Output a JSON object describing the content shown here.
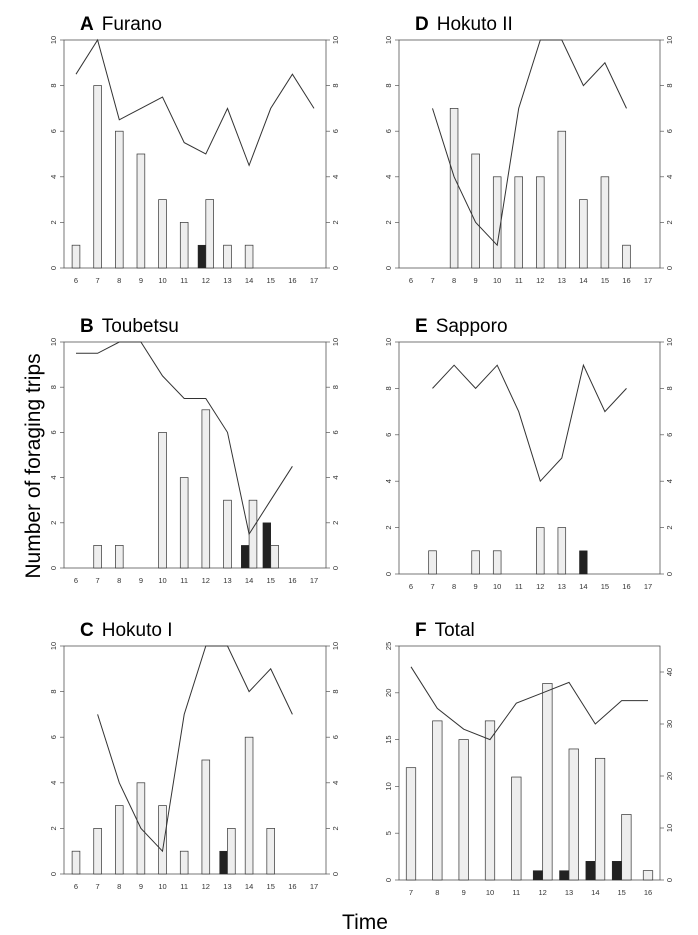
{
  "figure": {
    "ylabel": "Number of foraging trips",
    "xlabel": "Time"
  },
  "chart_data": [
    {
      "type": "bar",
      "letter": "A",
      "title": "Furano",
      "x": [
        6,
        7,
        8,
        9,
        10,
        11,
        12,
        13,
        14,
        15,
        16,
        17
      ],
      "ylim": [
        0,
        10
      ],
      "y2lim": [
        0,
        10
      ],
      "yticks": [
        0,
        2,
        4,
        6,
        8,
        10
      ],
      "y2ticks": [
        0,
        2,
        4,
        6,
        8,
        10
      ],
      "series": [
        {
          "kind": "bar",
          "color": "#eeeeee",
          "values": [
            1,
            8,
            6,
            5,
            3,
            2,
            3,
            1,
            1,
            null,
            null,
            null
          ]
        },
        {
          "kind": "bar",
          "color": "#222222",
          "values": [
            null,
            null,
            null,
            null,
            null,
            null,
            1,
            null,
            null,
            null,
            null,
            null
          ]
        },
        {
          "kind": "line",
          "axis": "right",
          "color": "#333333",
          "values": [
            8.5,
            10,
            6.5,
            7,
            7.5,
            5.5,
            5,
            7,
            4.5,
            7,
            8.5,
            7
          ]
        }
      ]
    },
    {
      "type": "bar",
      "letter": "B",
      "title": "Toubetsu",
      "x": [
        6,
        7,
        8,
        9,
        10,
        11,
        12,
        13,
        14,
        15,
        16,
        17
      ],
      "ylim": [
        0,
        10
      ],
      "y2lim": [
        0,
        10
      ],
      "yticks": [
        0,
        2,
        4,
        6,
        8,
        10
      ],
      "y2ticks": [
        0,
        2,
        4,
        6,
        8,
        10
      ],
      "series": [
        {
          "kind": "bar",
          "color": "#eeeeee",
          "values": [
            null,
            1,
            1,
            null,
            6,
            4,
            7,
            3,
            3,
            1,
            null,
            null
          ]
        },
        {
          "kind": "bar",
          "color": "#222222",
          "values": [
            null,
            null,
            null,
            null,
            null,
            null,
            null,
            null,
            1,
            2,
            null,
            null
          ]
        },
        {
          "kind": "line",
          "axis": "right",
          "color": "#333333",
          "values": [
            9.5,
            9.5,
            10,
            10,
            8.5,
            7.5,
            7.5,
            6,
            1.5,
            3,
            4.5,
            null
          ]
        }
      ]
    },
    {
      "type": "bar",
      "letter": "C",
      "title": "Hokuto I",
      "x": [
        6,
        7,
        8,
        9,
        10,
        11,
        12,
        13,
        14,
        15,
        16,
        17
      ],
      "ylim": [
        0,
        10
      ],
      "y2lim": [
        0,
        10
      ],
      "yticks": [
        0,
        2,
        4,
        6,
        8,
        10
      ],
      "y2ticks": [
        0,
        2,
        4,
        6,
        8,
        10
      ],
      "series": [
        {
          "kind": "bar",
          "color": "#eeeeee",
          "values": [
            1,
            2,
            3,
            4,
            3,
            1,
            5,
            2,
            6,
            2,
            null,
            null
          ]
        },
        {
          "kind": "bar",
          "color": "#222222",
          "values": [
            null,
            null,
            null,
            null,
            null,
            null,
            null,
            1,
            null,
            null,
            null,
            null
          ]
        },
        {
          "kind": "line",
          "axis": "right",
          "color": "#333333",
          "values": [
            null,
            7,
            4,
            2,
            1,
            7,
            10,
            10,
            8,
            9,
            7,
            null
          ]
        }
      ]
    },
    {
      "type": "bar",
      "letter": "D",
      "title": "Hokuto II",
      "x": [
        6,
        7,
        8,
        9,
        10,
        11,
        12,
        13,
        14,
        15,
        16,
        17
      ],
      "ylim": [
        0,
        10
      ],
      "y2lim": [
        0,
        10
      ],
      "yticks": [
        0,
        2,
        4,
        6,
        8,
        10
      ],
      "y2ticks": [
        0,
        2,
        4,
        6,
        8,
        10
      ],
      "series": [
        {
          "kind": "bar",
          "color": "#eeeeee",
          "values": [
            null,
            null,
            7,
            5,
            4,
            4,
            4,
            6,
            3,
            4,
            1,
            null
          ]
        },
        {
          "kind": "bar",
          "color": "#222222",
          "values": [
            null,
            null,
            null,
            null,
            null,
            null,
            null,
            null,
            null,
            null,
            null,
            null
          ]
        },
        {
          "kind": "line",
          "axis": "right",
          "color": "#333333",
          "values": [
            null,
            7,
            4,
            2,
            1,
            7,
            10,
            10,
            8,
            9,
            7,
            null
          ]
        }
      ]
    },
    {
      "type": "bar",
      "letter": "E",
      "title": "Sapporo",
      "x": [
        6,
        7,
        8,
        9,
        10,
        11,
        12,
        13,
        14,
        15,
        16,
        17
      ],
      "ylim": [
        0,
        10
      ],
      "y2lim": [
        0,
        10
      ],
      "yticks": [
        0,
        2,
        4,
        6,
        8,
        10
      ],
      "y2ticks": [
        0,
        2,
        4,
        6,
        8,
        10
      ],
      "series": [
        {
          "kind": "bar",
          "color": "#eeeeee",
          "values": [
            null,
            1,
            null,
            1,
            1,
            null,
            2,
            2,
            null,
            null,
            null,
            null
          ]
        },
        {
          "kind": "bar",
          "color": "#222222",
          "values": [
            null,
            null,
            null,
            null,
            null,
            null,
            null,
            null,
            1,
            null,
            null,
            null
          ]
        },
        {
          "kind": "line",
          "axis": "right",
          "color": "#333333",
          "values": [
            null,
            8,
            9,
            8,
            9,
            7,
            4,
            5,
            9,
            7,
            8,
            null
          ]
        }
      ]
    },
    {
      "type": "bar",
      "letter": "F",
      "title": "Total",
      "x": [
        7,
        8,
        9,
        10,
        11,
        12,
        13,
        14,
        15,
        16
      ],
      "ylim": [
        0,
        25
      ],
      "y2lim": [
        0,
        45
      ],
      "yticks": [
        0,
        5,
        10,
        15,
        20,
        25
      ],
      "y2ticks": [
        0,
        10,
        20,
        30,
        40
      ],
      "series": [
        {
          "kind": "bar",
          "color": "#eeeeee",
          "values": [
            12,
            17,
            15,
            17,
            11,
            21,
            14,
            13,
            7,
            1
          ]
        },
        {
          "kind": "bar",
          "color": "#222222",
          "values": [
            null,
            null,
            null,
            null,
            null,
            1,
            1,
            2,
            2,
            null
          ]
        },
        {
          "kind": "line",
          "axis": "right",
          "color": "#333333",
          "values": [
            41,
            33,
            29,
            27,
            34,
            36,
            38,
            30,
            34.5,
            34.5
          ]
        }
      ]
    }
  ]
}
